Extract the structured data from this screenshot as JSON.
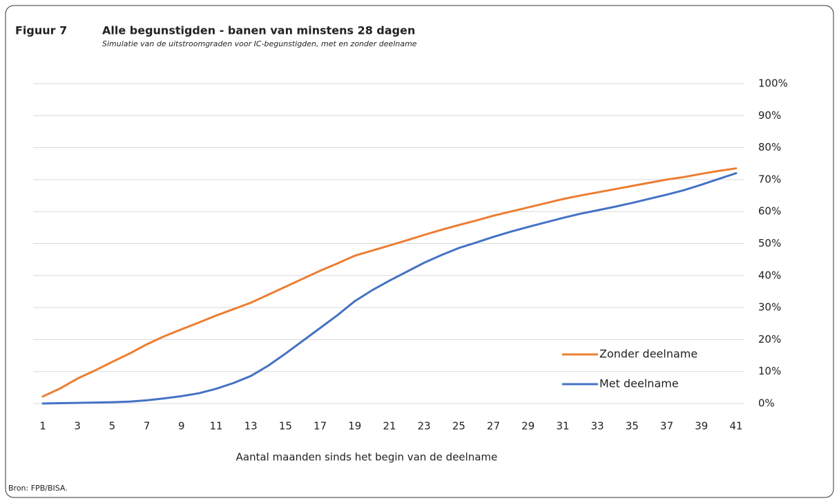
{
  "chart_data": {
    "type": "line",
    "figure_label": "Figuur 7",
    "title": "Alle begunstigden - banen van minstens 28 dagen",
    "subtitle": "Simulatie van de uitstroomgraden voor IC-begunstigden, met en zonder deelname",
    "x_label": "Aantal maanden sinds het begin van de deelname",
    "source": "Bron: FPB/BISA.",
    "x": [
      1,
      2,
      3,
      4,
      5,
      6,
      7,
      8,
      9,
      10,
      11,
      12,
      13,
      14,
      15,
      16,
      17,
      18,
      19,
      20,
      21,
      22,
      23,
      24,
      25,
      26,
      27,
      28,
      29,
      30,
      31,
      32,
      33,
      34,
      35,
      36,
      37,
      38,
      39,
      40,
      41
    ],
    "xlim": [
      1,
      41
    ],
    "xticks": [
      1,
      3,
      5,
      7,
      9,
      11,
      13,
      15,
      17,
      19,
      21,
      23,
      25,
      27,
      29,
      31,
      33,
      35,
      37,
      39,
      41
    ],
    "ylim": [
      0,
      100
    ],
    "yticks": [
      {
        "value": 0,
        "label": "0%"
      },
      {
        "value": 10,
        "label": "10%"
      },
      {
        "value": 20,
        "label": "20%"
      },
      {
        "value": 30,
        "label": "30%"
      },
      {
        "value": 40,
        "label": "40%"
      },
      {
        "value": 50,
        "label": "50%"
      },
      {
        "value": 60,
        "label": "60%"
      },
      {
        "value": 70,
        "label": "70%"
      },
      {
        "value": 80,
        "label": "80%"
      },
      {
        "value": 90,
        "label": "90%"
      },
      {
        "value": 100,
        "label": "100%"
      }
    ],
    "grid": true,
    "legend": "lower right",
    "series": [
      {
        "name": "Zonder deelname",
        "color": "#ed7d31",
        "values": [
          2.2,
          4.7,
          7.8,
          10.3,
          13,
          15.6,
          18.5,
          21,
          23.2,
          25.3,
          27.5,
          29.5,
          31.5,
          34,
          36.5,
          39,
          41.5,
          43.8,
          46.2,
          47.8,
          49.4,
          51,
          52.7,
          54.3,
          55.8,
          57.2,
          58.7,
          60,
          61.3,
          62.6,
          63.9,
          65,
          66,
          67,
          68,
          69,
          70,
          70.8,
          71.8,
          72.7,
          73.5
        ]
      },
      {
        "name": "Met deelname",
        "color": "#4472c4",
        "values": [
          0,
          0.1,
          0.2,
          0.3,
          0.4,
          0.6,
          1,
          1.6,
          2.3,
          3.2,
          4.6,
          6.4,
          8.6,
          11.8,
          15.6,
          19.6,
          23.6,
          27.6,
          32,
          35.4,
          38.4,
          41.2,
          44,
          46.4,
          48.6,
          50.3,
          52.1,
          53.7,
          55.2,
          56.6,
          58,
          59.3,
          60.4,
          61.5,
          62.7,
          64,
          65.3,
          66.7,
          68.4,
          70.2,
          72
        ]
      }
    ]
  }
}
